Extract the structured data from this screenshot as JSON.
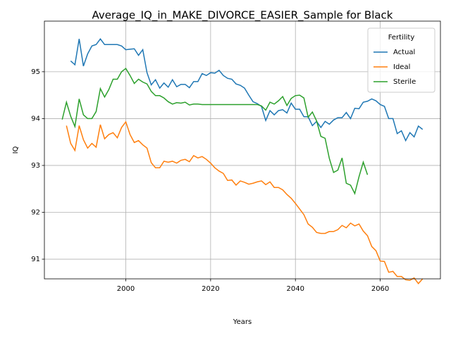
{
  "chart_data": {
    "type": "line",
    "title": "Average_IQ_in_MAKE_DIVORCE_EASIER_Sample for Black",
    "x_label": "Years",
    "y_label": "IQ",
    "legend_title": "Fertility",
    "legend": "upper right",
    "grid": true,
    "xlim": [
      1980.8,
      2074.2
    ],
    "ylim": [
      90.58,
      96.08
    ],
    "xticks": [
      2000,
      2020,
      2040,
      2060
    ],
    "yticks": [
      91,
      92,
      93,
      94,
      95
    ],
    "x": [
      1985,
      1986,
      1987,
      1988,
      1989,
      1990,
      1991,
      1992,
      1993,
      1994,
      1995,
      1996,
      1997,
      1998,
      1999,
      2000,
      2001,
      2002,
      2003,
      2004,
      2005,
      2006,
      2007,
      2008,
      2009,
      2010,
      2011,
      2012,
      2013,
      2014,
      2015,
      2016,
      2017,
      2018,
      2019,
      2020,
      2021,
      2022,
      2023,
      2024,
      2025,
      2026,
      2027,
      2028,
      2029,
      2030,
      2031,
      2032,
      2033,
      2034,
      2035,
      2036,
      2037,
      2038,
      2039,
      2040,
      2041,
      2042,
      2043,
      2044,
      2045,
      2046,
      2047,
      2048,
      2049,
      2050,
      2051,
      2052,
      2053,
      2054,
      2055,
      2056,
      2057,
      2058,
      2059,
      2060,
      2061,
      2062,
      2063,
      2064,
      2065,
      2066,
      2067,
      2068,
      2069,
      2070
    ],
    "series": [
      {
        "name": "Actual",
        "color": "#1f77b4",
        "values": [
          null,
          null,
          95.23,
          95.15,
          95.7,
          95.12,
          95.38,
          95.55,
          95.58,
          95.7,
          95.58,
          95.58,
          95.58,
          95.58,
          95.55,
          95.47,
          95.48,
          95.49,
          95.35,
          95.47,
          94.98,
          94.72,
          94.83,
          94.65,
          94.76,
          94.67,
          94.83,
          94.68,
          94.73,
          94.73,
          94.66,
          94.79,
          94.79,
          94.96,
          94.92,
          94.98,
          94.97,
          95.03,
          94.92,
          94.86,
          94.84,
          94.74,
          94.71,
          94.65,
          94.5,
          94.36,
          94.32,
          94.26,
          93.96,
          94.17,
          94.08,
          94.17,
          94.19,
          94.12,
          94.33,
          94.2,
          94.2,
          94.04,
          94.04,
          93.85,
          93.94,
          93.81,
          93.94,
          93.88,
          93.97,
          94.02,
          94.02,
          94.13,
          94.0,
          94.22,
          94.21,
          94.35,
          94.37,
          94.42,
          94.38,
          94.3,
          94.26,
          94.0,
          94.0,
          93.68,
          93.74,
          93.53,
          93.7,
          93.61,
          93.84,
          93.77
        ]
      },
      {
        "name": "Ideal",
        "color": "#ff7f0e",
        "values": [
          null,
          93.85,
          93.47,
          93.32,
          93.85,
          93.55,
          93.37,
          93.47,
          93.39,
          93.87,
          93.57,
          93.66,
          93.7,
          93.59,
          93.81,
          93.93,
          93.66,
          93.49,
          93.53,
          93.44,
          93.37,
          93.06,
          92.95,
          92.95,
          93.09,
          93.07,
          93.09,
          93.05,
          93.11,
          93.13,
          93.08,
          93.21,
          93.16,
          93.19,
          93.13,
          93.05,
          92.95,
          92.88,
          92.83,
          92.68,
          92.69,
          92.58,
          92.67,
          92.64,
          92.6,
          92.62,
          92.65,
          92.67,
          92.59,
          92.65,
          92.53,
          92.53,
          92.48,
          92.38,
          92.3,
          92.19,
          92.07,
          91.95,
          91.75,
          91.68,
          91.57,
          91.55,
          91.55,
          91.59,
          91.59,
          91.63,
          91.72,
          91.67,
          91.77,
          91.71,
          91.75,
          91.6,
          91.5,
          91.27,
          91.18,
          90.96,
          90.95,
          90.72,
          90.74,
          90.63,
          90.63,
          90.56,
          90.55,
          90.6,
          90.48,
          90.58
        ]
      },
      {
        "name": "Sterile",
        "color": "#2ca02c",
        "values": [
          93.98,
          94.35,
          94.05,
          93.83,
          94.42,
          94.08,
          94.0,
          94.0,
          94.15,
          94.64,
          94.46,
          94.62,
          94.84,
          94.84,
          95.0,
          95.07,
          94.92,
          94.75,
          94.84,
          94.78,
          94.74,
          94.58,
          94.49,
          94.49,
          94.44,
          94.36,
          94.31,
          94.34,
          94.33,
          94.35,
          94.29,
          94.31,
          94.31,
          94.3,
          94.3,
          94.3,
          94.3,
          94.3,
          94.3,
          94.3,
          94.3,
          94.3,
          94.3,
          94.3,
          94.3,
          94.3,
          94.3,
          94.27,
          94.18,
          94.35,
          94.31,
          94.38,
          94.47,
          94.28,
          94.43,
          94.49,
          94.5,
          94.44,
          94.03,
          94.14,
          93.95,
          93.62,
          93.58,
          93.15,
          92.85,
          92.9,
          93.16,
          92.62,
          92.58,
          92.4,
          92.76,
          93.07,
          92.8,
          null,
          null,
          null,
          null,
          null,
          null,
          null,
          null,
          null,
          null,
          null,
          null,
          null
        ]
      }
    ]
  }
}
